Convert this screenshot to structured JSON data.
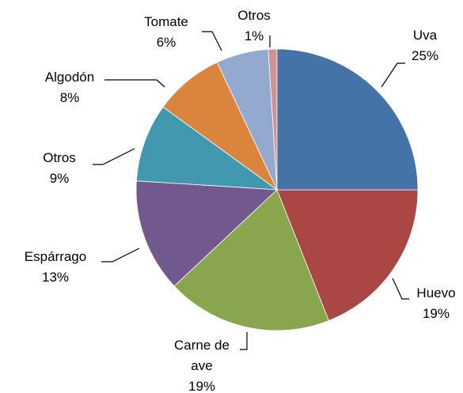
{
  "chart_data": {
    "type": "pie",
    "categories": [
      "Uva",
      "Huevo",
      "Carne de ave",
      "Espárrago",
      "Otros",
      "Algodón",
      "Tomate",
      "Otros"
    ],
    "values": [
      25,
      19,
      19,
      13,
      9,
      8,
      6,
      1
    ],
    "value_labels": [
      "25%",
      "19%",
      "19%",
      "13%",
      "9%",
      "8%",
      "6%",
      "1%"
    ],
    "colors": [
      "#4572a7",
      "#aa4643",
      "#89a54e",
      "#71588f",
      "#4198af",
      "#db843d",
      "#93a9cf",
      "#d19392"
    ]
  }
}
